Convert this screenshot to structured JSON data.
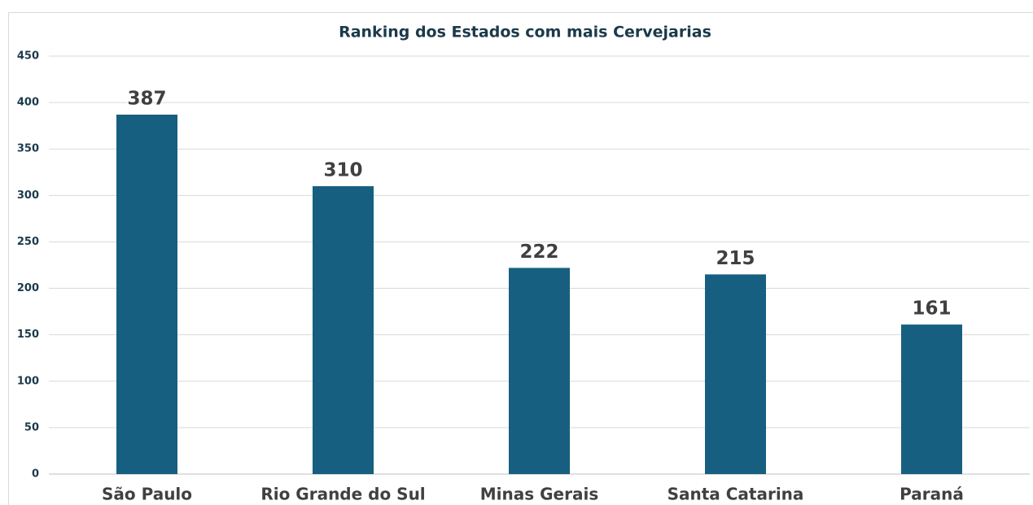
{
  "chart_data": {
    "type": "bar",
    "title": "Ranking dos Estados com mais Cervejarias",
    "categories": [
      "São Paulo",
      "Rio Grande do Sul",
      "Minas Gerais",
      "Santa Catarina",
      "Paraná"
    ],
    "values": [
      387,
      310,
      222,
      215,
      161
    ],
    "color": "#175f80",
    "ylim": [
      0,
      450
    ],
    "yticks": [
      0,
      50,
      100,
      150,
      200,
      250,
      300,
      350,
      400,
      450
    ],
    "grid": true
  }
}
